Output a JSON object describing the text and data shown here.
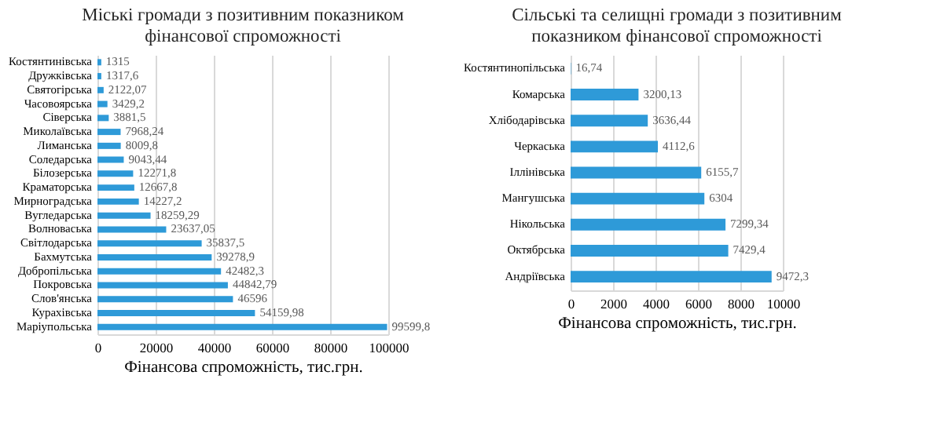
{
  "chart_data": [
    {
      "type": "bar",
      "orientation": "horizontal",
      "title": "Міські громади з позитивним показником фінансової спроможності",
      "xlabel": "Фінансова спроможність, тис.грн.",
      "categories": [
        "Костянтинівська",
        "Дружківська",
        "Святогірська",
        "Часовоярська",
        "Сіверська",
        "Миколаївська",
        "Лиманська",
        "Соледарська",
        "Білозерська",
        "Краматорська",
        "Мирноградська",
        "Вугледарська",
        "Волноваська",
        "Світлодарська",
        "Бахмутська",
        "Добропільська",
        "Покровська",
        "Слов'янська",
        "Курахівська",
        "Маріупольська"
      ],
      "values": [
        1315,
        1317.6,
        2122.07,
        3429.2,
        3881.5,
        7968.24,
        8009.8,
        9043.44,
        12271.8,
        12667.8,
        14227.2,
        18259.29,
        23637.05,
        35837.5,
        39278.9,
        42482.3,
        44842.79,
        46596,
        54159.98,
        99599.8
      ],
      "value_labels": [
        "1315",
        "1317,6",
        "2122,07",
        "3429,2",
        "3881,5",
        "7968,24",
        "8009,8",
        "9043,44",
        "12271,8",
        "12667,8",
        "14227,2",
        "18259,29",
        "23637,05",
        "35837,5",
        "39278,9",
        "42482,3",
        "44842,79",
        "46596",
        "54159,98",
        "99599,8"
      ],
      "color": "#2e9ad8",
      "xlim": [
        0,
        100000
      ],
      "xticks": [
        0,
        20000,
        40000,
        60000,
        80000,
        100000
      ],
      "grid": "x"
    },
    {
      "type": "bar",
      "orientation": "horizontal",
      "title": "Сільські та селищні громади з позитивним показником фінансової спроможності",
      "xlabel": "Фінансова спроможність, тис.грн.",
      "categories": [
        "Костянтинопільська",
        "Комарська",
        "Хлібодарівська",
        "Черкаська",
        "Іллінівська",
        "Мангушська",
        "Нікольська",
        "Октябрська",
        "Андріївська"
      ],
      "values": [
        16.74,
        3200.13,
        3636.44,
        4112.6,
        6155.7,
        6304,
        7299.34,
        7429.4,
        9472.3
      ],
      "value_labels": [
        "16,74",
        "3200,13",
        "3636,44",
        "4112,6",
        "6155,7",
        "6304",
        "7299,34",
        "7429,4",
        "9472,3"
      ],
      "color": "#2e9ad8",
      "xlim": [
        0,
        10000
      ],
      "xticks": [
        0,
        2000,
        4000,
        6000,
        8000,
        10000
      ],
      "grid": "x"
    }
  ]
}
